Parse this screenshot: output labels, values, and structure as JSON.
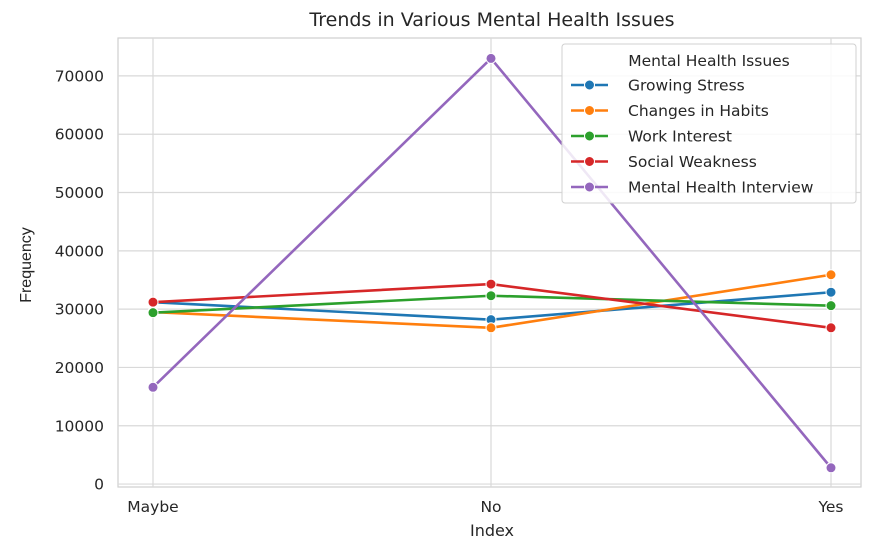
{
  "chart_data": {
    "type": "line",
    "title": "Trends in Various Mental Health Issues",
    "xlabel": "Index",
    "ylabel": "Frequency",
    "categories": [
      "Maybe",
      "No",
      "Yes"
    ],
    "ylim": [
      -500,
      76500
    ],
    "yticks": [
      0,
      10000,
      20000,
      30000,
      40000,
      50000,
      60000,
      70000
    ],
    "yticklabels": [
      "0",
      "10000",
      "20000",
      "30000",
      "40000",
      "50000",
      "60000",
      "70000"
    ],
    "grid": true,
    "legend": {
      "title": "Mental Health Issues",
      "placement": "top-right"
    },
    "series": [
      {
        "name": "Growing Stress",
        "color": "#1f77b4",
        "values": [
          31200,
          28200,
          32900
        ]
      },
      {
        "name": "Changes in Habits",
        "color": "#ff7f0e",
        "values": [
          29500,
          26800,
          35900
        ]
      },
      {
        "name": "Work Interest",
        "color": "#2ca02c",
        "values": [
          29400,
          32300,
          30600
        ]
      },
      {
        "name": "Social Weakness",
        "color": "#d62728",
        "values": [
          31200,
          34300,
          26800
        ]
      },
      {
        "name": "Mental Health Interview",
        "color": "#9467bd",
        "values": [
          16600,
          73000,
          2800
        ]
      }
    ]
  }
}
